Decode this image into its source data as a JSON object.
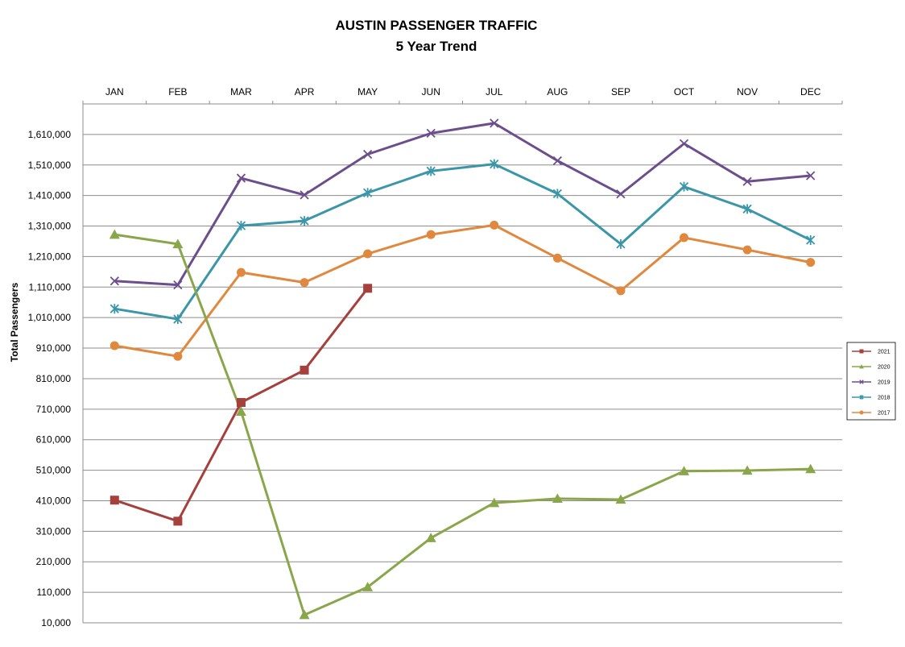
{
  "chart_data": {
    "type": "line",
    "title": "AUSTIN PASSENGER TRAFFIC",
    "subtitle": "5 Year Trend",
    "xlabel": "",
    "ylabel": "Total Passengers",
    "categories": [
      "JAN",
      "FEB",
      "MAR",
      "APR",
      "MAY",
      "JUN",
      "JUL",
      "AUG",
      "SEP",
      "OCT",
      "NOV",
      "DEC"
    ],
    "ylim": [
      10000,
      1710000
    ],
    "yticks": [
      10000,
      110000,
      210000,
      310000,
      410000,
      510000,
      610000,
      710000,
      810000,
      910000,
      1010000,
      1110000,
      1210000,
      1310000,
      1410000,
      1510000,
      1610000
    ],
    "ytick_labels": [
      "10,000",
      "110,000",
      "210,000",
      "310,000",
      "410,000",
      "510,000",
      "610,000",
      "710,000",
      "810,000",
      "910,000",
      "1,010,000",
      "1,110,000",
      "1,210,000",
      "1,310,000",
      "1,410,000",
      "1,510,000",
      "1,610,000"
    ],
    "x_axis_position": "top",
    "grid": true,
    "legend_position": "right",
    "series": [
      {
        "name": "2021",
        "color": "#a5403d",
        "marker": "square",
        "values": [
          412000,
          343000,
          732000,
          838000,
          1106000,
          null,
          null,
          null,
          null,
          null,
          null,
          null
        ]
      },
      {
        "name": "2020",
        "color": "#8aa64a",
        "marker": "triangle",
        "values": [
          1282000,
          1251000,
          702000,
          36000,
          127000,
          288000,
          403000,
          417000,
          414000,
          507000,
          509000,
          514000
        ]
      },
      {
        "name": "2019",
        "color": "#6d4e8c",
        "marker": "x",
        "values": [
          1130000,
          1117000,
          1467000,
          1412000,
          1545000,
          1614000,
          1647000,
          1524000,
          1415000,
          1580000,
          1456000,
          1475000
        ]
      },
      {
        "name": "2018",
        "color": "#3a96a8",
        "marker": "asterisk",
        "values": [
          1039000,
          1005000,
          1311000,
          1327000,
          1419000,
          1490000,
          1513000,
          1416000,
          1251000,
          1439000,
          1366000,
          1264000
        ]
      },
      {
        "name": "2017",
        "color": "#e0883d",
        "marker": "circle",
        "values": [
          918000,
          883000,
          1158000,
          1125000,
          1219000,
          1282000,
          1313000,
          1205000,
          1098000,
          1272000,
          1232000,
          1191000
        ]
      }
    ]
  }
}
